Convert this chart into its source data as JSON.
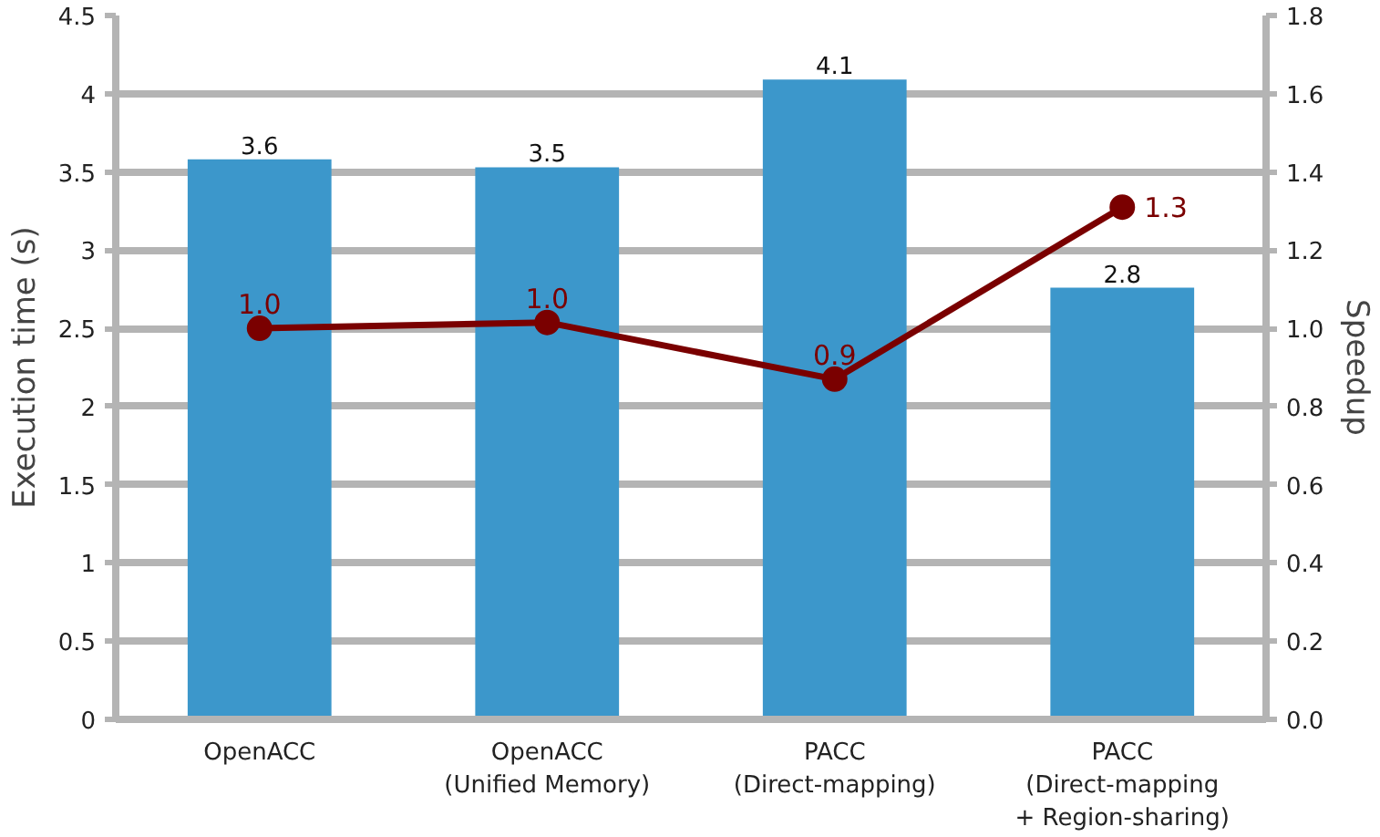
{
  "chart_data": {
    "type": "bar",
    "categories": [
      "OpenACC",
      "OpenACC\n(Unified Memory)",
      "PACC\n(Direct-mapping)",
      "PACC\n(Direct-mapping\n+ Region-sharing)"
    ],
    "ylabel": "Execution time (s)",
    "y2label": "Speedup",
    "ylim": [
      0,
      4.5
    ],
    "yticks": [
      0,
      0.5,
      1,
      1.5,
      2,
      2.5,
      3,
      3.5,
      4,
      4.5
    ],
    "y2lim": [
      0,
      1.8
    ],
    "y2ticks": [
      {
        "value": 0,
        "label": "0.0"
      },
      {
        "value": 0.2,
        "label": "0.2"
      },
      {
        "value": 0.4,
        "label": "0.4"
      },
      {
        "value": 0.6,
        "label": "0.6"
      },
      {
        "value": 0.8,
        "label": "0.8"
      },
      {
        "value": 1.0,
        "label": "1.0"
      },
      {
        "value": 1.2,
        "label": "1.2"
      },
      {
        "value": 1.4,
        "label": "1.4"
      },
      {
        "value": 1.6,
        "label": "1.6"
      },
      {
        "value": 1.8,
        "label": "1.8"
      }
    ],
    "grid": "y",
    "series": [
      {
        "color": "#3c97cb",
        "values": [
          3.58,
          3.53,
          4.09,
          2.76
        ],
        "value_labels": [
          "3.6",
          "3.5",
          "4.1",
          "2.8"
        ]
      },
      {
        "type": "line",
        "axis": "y2",
        "color": "#7a0000",
        "marker": "circle",
        "line_style": "solid",
        "values": [
          1.0,
          1.015,
          0.87,
          1.31
        ],
        "value_labels": [
          "1.0",
          "1.0",
          "0.9",
          "1.3"
        ]
      }
    ]
  }
}
